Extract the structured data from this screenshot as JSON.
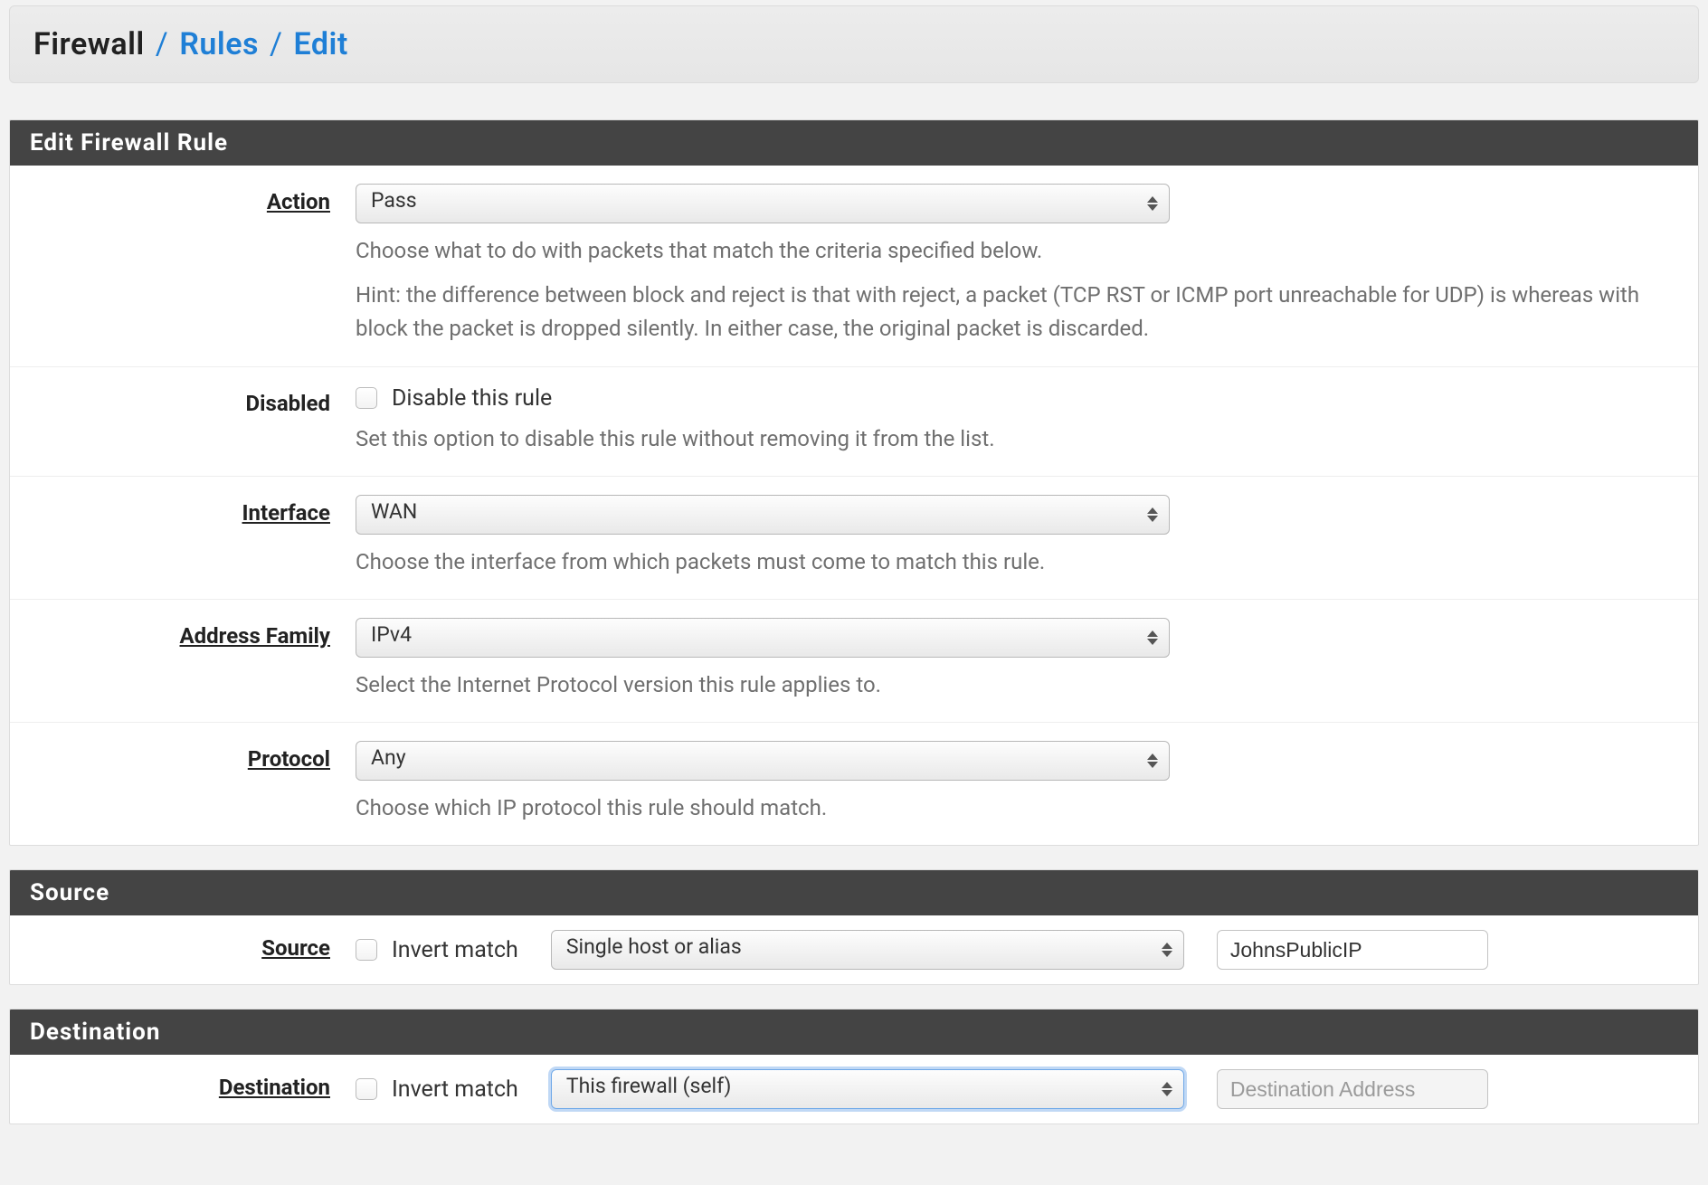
{
  "breadcrumb": {
    "root": "Firewall",
    "sep": "/",
    "link1": "Rules",
    "link2": "Edit"
  },
  "panels": {
    "editRule": {
      "title": "Edit Firewall Rule",
      "action": {
        "label": "Action",
        "value": "Pass",
        "hint1": "Choose what to do with packets that match the criteria specified below.",
        "hint2": "Hint: the difference between block and reject is that with reject, a packet (TCP RST or ICMP port unreachable for UDP) is whereas with block the packet is dropped silently. In either case, the original packet is discarded."
      },
      "disabled": {
        "label": "Disabled",
        "checkbox_label": "Disable this rule",
        "hint": "Set this option to disable this rule without removing it from the list."
      },
      "interface": {
        "label": "Interface",
        "value": "WAN",
        "hint": "Choose the interface from which packets must come to match this rule."
      },
      "addressFamily": {
        "label": "Address Family",
        "value": "IPv4",
        "hint": "Select the Internet Protocol version this rule applies to."
      },
      "protocol": {
        "label": "Protocol",
        "value": "Any",
        "hint": "Choose which IP protocol this rule should match."
      }
    },
    "source": {
      "title": "Source",
      "label": "Source",
      "invert_label": "Invert match",
      "type_value": "Single host or alias",
      "address_value": "JohnsPublicIP"
    },
    "destination": {
      "title": "Destination",
      "label": "Destination",
      "invert_label": "Invert match",
      "type_value": "This firewall (self)",
      "address_placeholder": "Destination Address"
    }
  }
}
